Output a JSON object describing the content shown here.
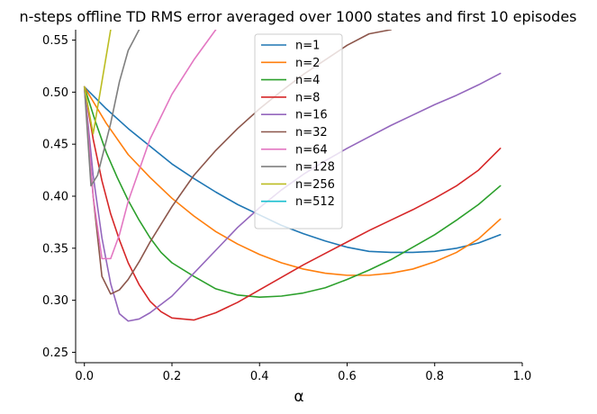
{
  "chart_data": {
    "type": "line",
    "title": "n-steps offline TD RMS error averaged over 1000 states and first 10 episodes",
    "xlabel": "α",
    "ylabel": "",
    "xlim": [
      -0.02,
      1.0
    ],
    "ylim": [
      0.24,
      0.56
    ],
    "xticks": [
      0.0,
      0.2,
      0.4,
      0.6,
      0.8,
      1.0
    ],
    "xtick_labels": [
      "0.0",
      "0.2",
      "0.4",
      "0.6",
      "0.8",
      "1.0"
    ],
    "yticks": [
      0.25,
      0.3,
      0.35,
      0.4,
      0.45,
      0.5,
      0.55
    ],
    "ytick_labels": [
      "0.25",
      "0.30",
      "0.35",
      "0.40",
      "0.45",
      "0.50",
      "0.55"
    ],
    "grid": false,
    "legend_position": "top-center",
    "series": [
      {
        "name": "n=1",
        "color": "#1f77b4",
        "x": [
          0.0,
          0.05,
          0.1,
          0.15,
          0.2,
          0.25,
          0.3,
          0.35,
          0.4,
          0.45,
          0.5,
          0.55,
          0.6,
          0.65,
          0.7,
          0.75,
          0.8,
          0.85,
          0.9,
          0.95
        ],
        "y": [
          0.505,
          0.484,
          0.465,
          0.448,
          0.431,
          0.417,
          0.404,
          0.392,
          0.382,
          0.372,
          0.364,
          0.357,
          0.351,
          0.347,
          0.346,
          0.346,
          0.347,
          0.35,
          0.355,
          0.363
        ]
      },
      {
        "name": "n=2",
        "color": "#ff7f0e",
        "x": [
          0.0,
          0.05,
          0.1,
          0.15,
          0.2,
          0.25,
          0.3,
          0.35,
          0.4,
          0.45,
          0.5,
          0.55,
          0.6,
          0.65,
          0.7,
          0.75,
          0.8,
          0.85,
          0.9,
          0.95
        ],
        "y": [
          0.505,
          0.47,
          0.44,
          0.418,
          0.398,
          0.381,
          0.366,
          0.354,
          0.344,
          0.336,
          0.33,
          0.326,
          0.324,
          0.324,
          0.326,
          0.33,
          0.337,
          0.346,
          0.359,
          0.378
        ]
      },
      {
        "name": "n=4",
        "color": "#2ca02c",
        "x": [
          0.0,
          0.025,
          0.05,
          0.075,
          0.1,
          0.125,
          0.15,
          0.175,
          0.2,
          0.25,
          0.3,
          0.35,
          0.4,
          0.45,
          0.5,
          0.55,
          0.6,
          0.65,
          0.7,
          0.75,
          0.8,
          0.85,
          0.9,
          0.95
        ],
        "y": [
          0.505,
          0.472,
          0.442,
          0.418,
          0.396,
          0.377,
          0.36,
          0.346,
          0.336,
          0.323,
          0.311,
          0.305,
          0.303,
          0.304,
          0.307,
          0.312,
          0.32,
          0.329,
          0.339,
          0.351,
          0.363,
          0.377,
          0.392,
          0.41
        ]
      },
      {
        "name": "n=8",
        "color": "#d62728",
        "x": [
          0.0,
          0.02,
          0.04,
          0.06,
          0.08,
          0.1,
          0.125,
          0.15,
          0.175,
          0.2,
          0.25,
          0.3,
          0.35,
          0.4,
          0.45,
          0.5,
          0.55,
          0.6,
          0.65,
          0.7,
          0.75,
          0.8,
          0.85,
          0.9,
          0.95
        ],
        "y": [
          0.505,
          0.455,
          0.415,
          0.383,
          0.358,
          0.336,
          0.315,
          0.299,
          0.289,
          0.283,
          0.281,
          0.288,
          0.298,
          0.31,
          0.322,
          0.334,
          0.345,
          0.356,
          0.367,
          0.377,
          0.387,
          0.398,
          0.41,
          0.425,
          0.446
        ]
      },
      {
        "name": "n=16",
        "color": "#9467bd",
        "x": [
          0.0,
          0.02,
          0.04,
          0.06,
          0.08,
          0.1,
          0.125,
          0.15,
          0.2,
          0.25,
          0.3,
          0.35,
          0.4,
          0.45,
          0.5,
          0.55,
          0.6,
          0.65,
          0.7,
          0.75,
          0.8,
          0.85,
          0.9,
          0.95
        ],
        "y": [
          0.505,
          0.42,
          0.36,
          0.316,
          0.287,
          0.28,
          0.282,
          0.288,
          0.304,
          0.326,
          0.348,
          0.37,
          0.389,
          0.406,
          0.421,
          0.434,
          0.446,
          0.457,
          0.468,
          0.478,
          0.488,
          0.497,
          0.507,
          0.518
        ]
      },
      {
        "name": "n=32",
        "color": "#8c564b",
        "x": [
          0.0,
          0.02,
          0.04,
          0.06,
          0.08,
          0.1,
          0.125,
          0.15,
          0.2,
          0.25,
          0.3,
          0.35,
          0.4,
          0.45,
          0.5,
          0.55,
          0.6,
          0.65,
          0.7
        ],
        "y": [
          0.505,
          0.4,
          0.323,
          0.306,
          0.31,
          0.32,
          0.337,
          0.356,
          0.39,
          0.42,
          0.444,
          0.465,
          0.484,
          0.501,
          0.517,
          0.531,
          0.545,
          0.556,
          0.56
        ]
      },
      {
        "name": "n=64",
        "color": "#e377c2",
        "x": [
          0.0,
          0.02,
          0.04,
          0.06,
          0.08,
          0.1,
          0.125,
          0.15,
          0.2,
          0.25,
          0.3
        ],
        "y": [
          0.505,
          0.4,
          0.34,
          0.34,
          0.363,
          0.395,
          0.425,
          0.455,
          0.498,
          0.531,
          0.56
        ]
      },
      {
        "name": "n=128",
        "color": "#7f7f7f",
        "x": [
          0.0,
          0.015,
          0.03,
          0.045,
          0.06,
          0.08,
          0.1,
          0.125
        ],
        "y": [
          0.505,
          0.41,
          0.42,
          0.445,
          0.47,
          0.51,
          0.54,
          0.56
        ]
      },
      {
        "name": "n=256",
        "color": "#bcbd22",
        "x": [
          0.0,
          0.02,
          0.04,
          0.06
        ],
        "y": [
          0.505,
          0.46,
          0.51,
          0.56
        ]
      },
      {
        "name": "n=512",
        "color": "#17becf",
        "x": [],
        "y": []
      }
    ]
  }
}
